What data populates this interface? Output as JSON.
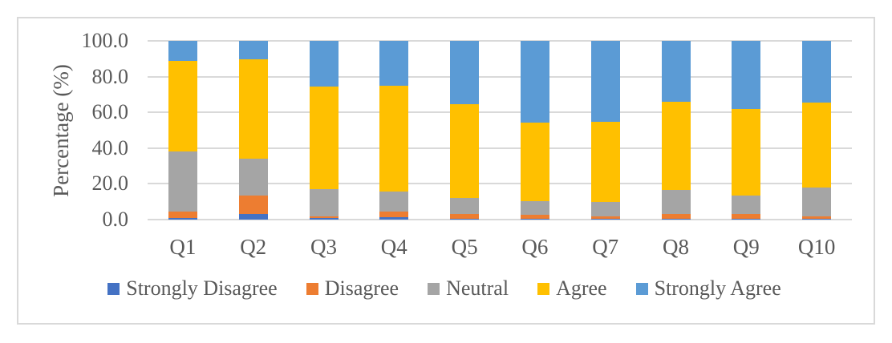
{
  "chart_data": {
    "type": "bar",
    "stacked": true,
    "title": "",
    "xlabel": "",
    "ylabel": "Percentage (%)",
    "ylim": [
      0,
      100
    ],
    "ytick_labels": [
      "0.0",
      "20.0",
      "40.0",
      "60.0",
      "80.0",
      "100.0"
    ],
    "grid": true,
    "legend_position": "bottom",
    "categories": [
      "Q1",
      "Q2",
      "Q3",
      "Q4",
      "Q5",
      "Q6",
      "Q7",
      "Q8",
      "Q9",
      "Q10"
    ],
    "series": [
      {
        "name": "Strongly Disagree",
        "color": "#4472C4",
        "values": [
          1.0,
          3.0,
          1.0,
          1.5,
          0.5,
          0.5,
          0.5,
          0.5,
          0.5,
          0.5
        ]
      },
      {
        "name": "Disagree",
        "color": "#ED7D31",
        "values": [
          3.5,
          10.5,
          1.0,
          3.0,
          2.5,
          2.0,
          1.5,
          2.5,
          2.5,
          1.5
        ]
      },
      {
        "name": "Neutral",
        "color": "#A5A5A5",
        "values": [
          33.5,
          20.5,
          15.0,
          11.0,
          9.0,
          8.0,
          8.0,
          13.5,
          10.5,
          16.0
        ]
      },
      {
        "name": "Agree",
        "color": "#FFC000",
        "values": [
          51.0,
          55.5,
          57.5,
          59.5,
          52.5,
          44.0,
          44.5,
          49.5,
          48.5,
          47.5
        ]
      },
      {
        "name": "Strongly Agree",
        "color": "#5B9BD5",
        "values": [
          11.0,
          10.5,
          25.5,
          25.0,
          35.5,
          45.5,
          45.5,
          34.0,
          38.0,
          34.5
        ]
      }
    ],
    "colors": {
      "text": "#595959",
      "gridline": "#D9D9D9",
      "frame_border": "#D9D9D9",
      "background": "#FFFFFF"
    }
  }
}
